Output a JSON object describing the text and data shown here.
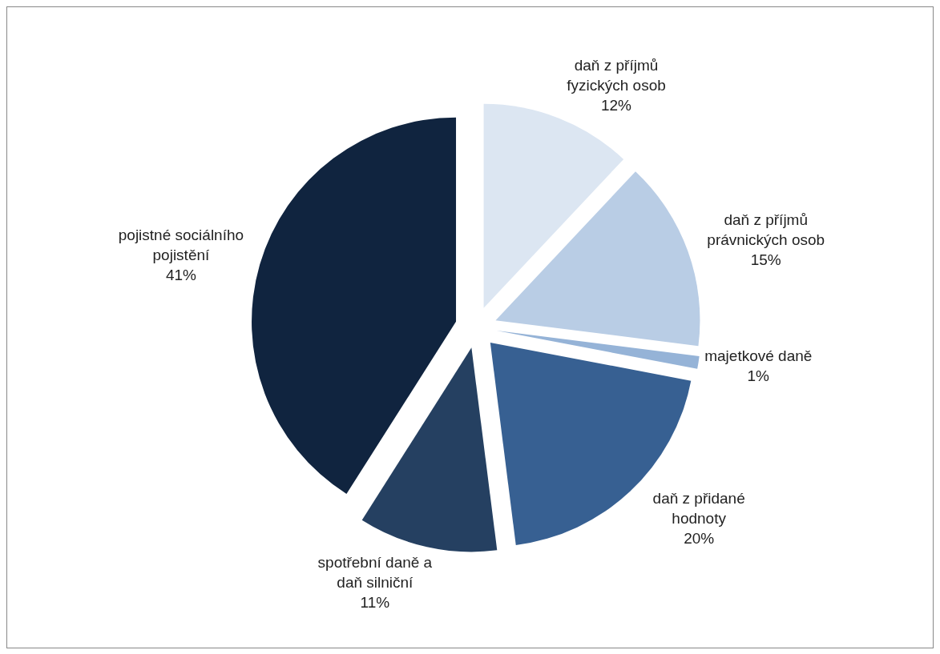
{
  "chart_data": {
    "type": "pie",
    "categories": [
      "daň z příjmů fyzických osob",
      "daň z příjmů právnických osob",
      "majetkové daně",
      "daň z přidané hodnoty",
      "spotřební daně a daň silniční",
      "pojistné sociálního pojistění"
    ],
    "values": [
      12,
      15,
      1,
      20,
      11,
      41
    ],
    "colors": [
      "#dce6f2",
      "#b9cde5",
      "#95b3d7",
      "#376092",
      "#254061",
      "#10243f"
    ],
    "value_labels": [
      "12%",
      "15%",
      "1%",
      "20%",
      "11%",
      "41%"
    ],
    "legend": false
  }
}
